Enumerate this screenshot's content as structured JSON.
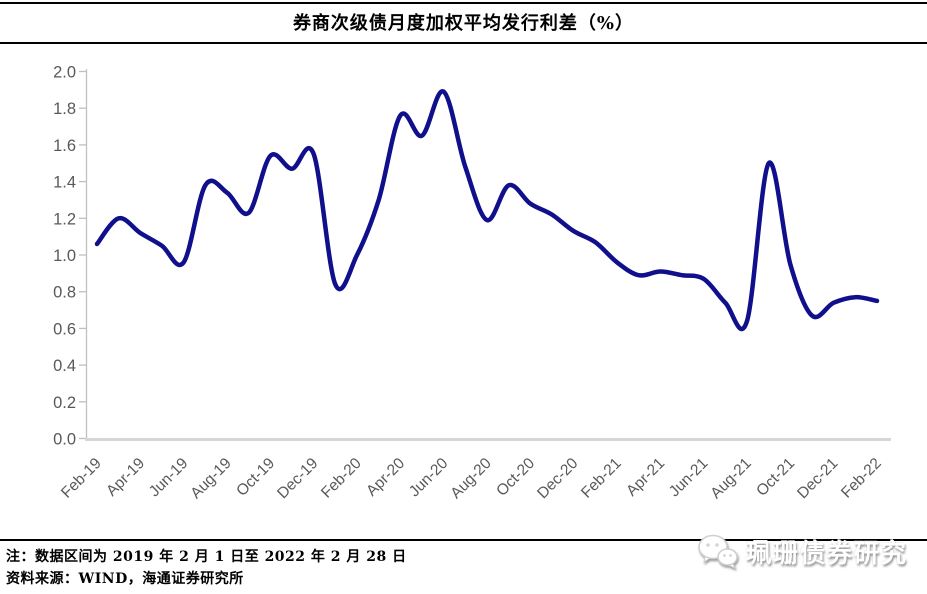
{
  "title": "券商次级债月度加权平均发行利差（%）",
  "footnotes": {
    "data_range": "注：数据区间为 2019 年 2 月 1 日至 2022 年 2 月 28 日",
    "source": "资料来源：WIND，海通证券研究所"
  },
  "watermark": {
    "icon": "wechat-icon",
    "label": "珮珊债券研究"
  },
  "chart_data": {
    "type": "line",
    "title": "券商次级债月度加权平均发行利差（%）",
    "xlabel": "",
    "ylabel": "",
    "ylim": [
      0.0,
      2.0
    ],
    "ytick_step": 0.2,
    "grid": "off",
    "legend": "none",
    "x": [
      "Feb-19",
      "Mar-19",
      "Apr-19",
      "May-19",
      "Jun-19",
      "Jul-19",
      "Aug-19",
      "Sep-19",
      "Oct-19",
      "Nov-19",
      "Dec-19",
      "Jan-20",
      "Feb-20",
      "Mar-20",
      "Apr-20",
      "May-20",
      "Jun-20",
      "Jul-20",
      "Aug-20",
      "Sep-20",
      "Oct-20",
      "Nov-20",
      "Dec-20",
      "Jan-21",
      "Feb-21",
      "Mar-21",
      "Apr-21",
      "May-21",
      "Jun-21",
      "Jul-21",
      "Aug-21",
      "Sep-21",
      "Oct-21",
      "Nov-21",
      "Dec-21",
      "Jan-22",
      "Feb-22"
    ],
    "values": [
      1.06,
      1.2,
      1.12,
      1.05,
      0.96,
      1.38,
      1.34,
      1.23,
      1.54,
      1.47,
      1.55,
      0.84,
      1.0,
      1.3,
      1.76,
      1.65,
      1.89,
      1.48,
      1.19,
      1.38,
      1.28,
      1.22,
      1.13,
      1.07,
      0.96,
      0.89,
      0.91,
      0.89,
      0.87,
      0.74,
      0.64,
      1.5,
      0.95,
      0.67,
      0.74,
      0.77,
      0.75
    ],
    "x_tick_labels": [
      "Feb-19",
      "Apr-19",
      "Jun-19",
      "Aug-19",
      "Oct-19",
      "Dec-19",
      "Feb-20",
      "Apr-20",
      "Jun-20",
      "Aug-20",
      "Oct-20",
      "Dec-20",
      "Feb-21",
      "Apr-21",
      "Jun-21",
      "Aug-21",
      "Oct-21",
      "Dec-21",
      "Feb-22"
    ],
    "colors": {
      "line": "#10108C",
      "axis_labels": "#595959",
      "axis_line": "#BFBFBF",
      "x_axis_line": "#D6D6D6"
    }
  }
}
